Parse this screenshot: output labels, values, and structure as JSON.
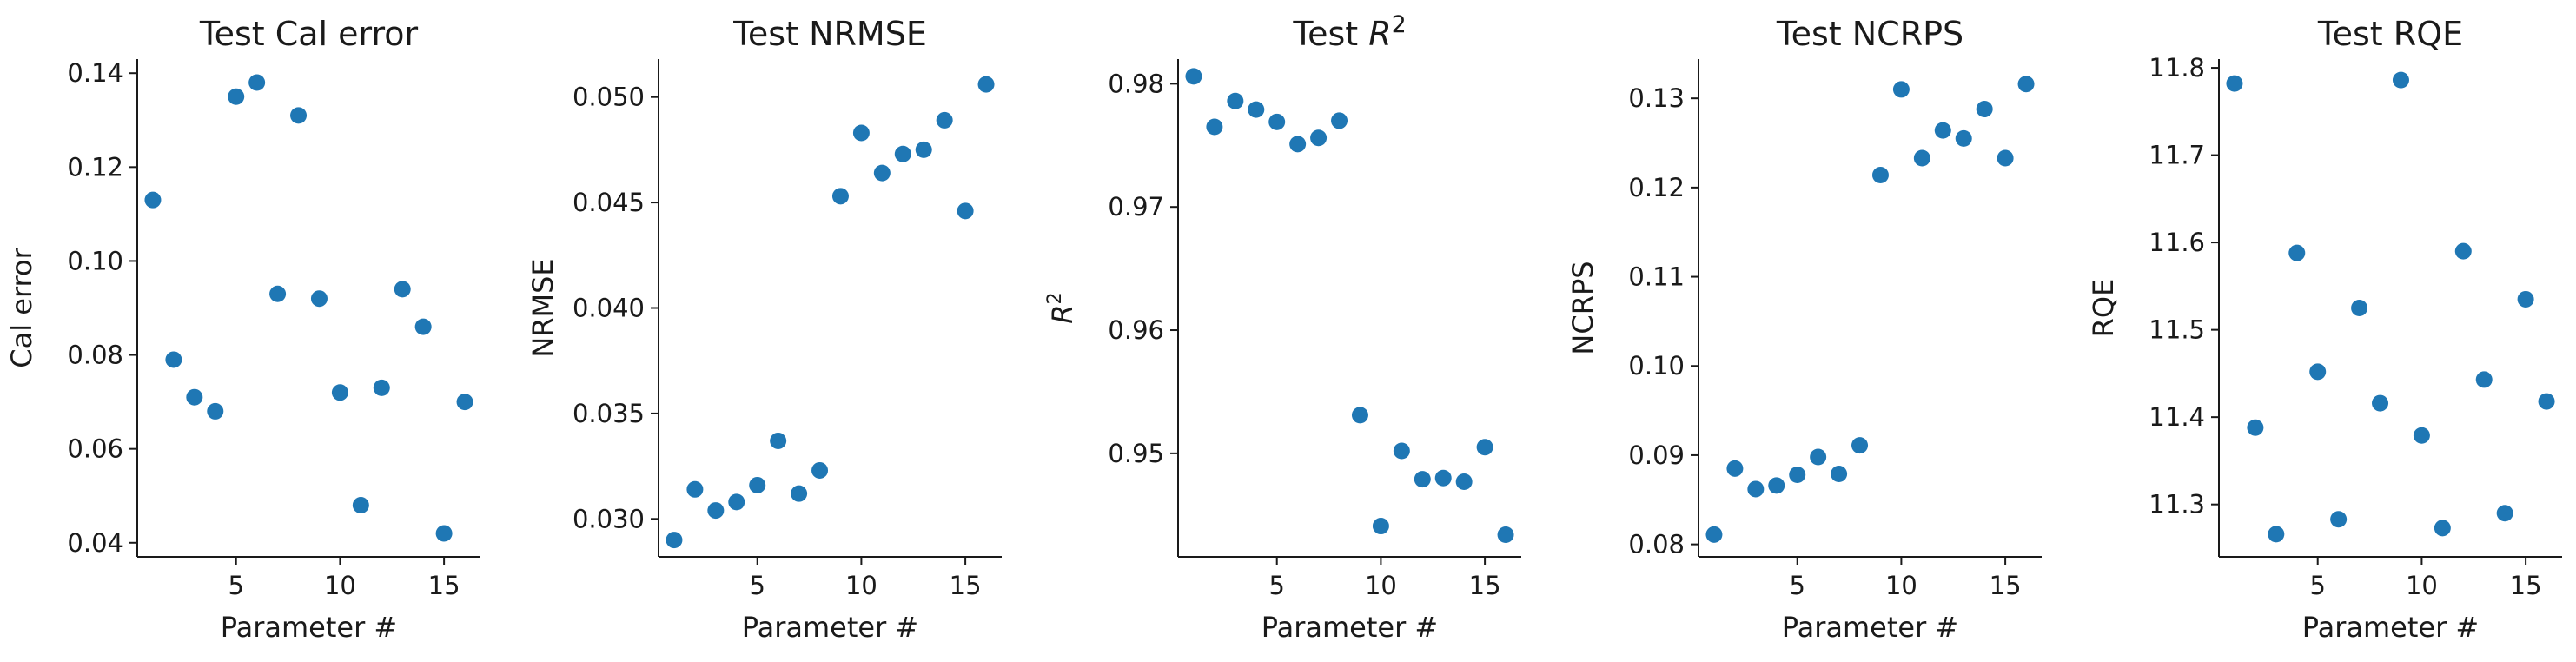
{
  "figure": {
    "marker_color": "#1f77b4",
    "axis_color": "#1a1a1a",
    "background": "#ffffff"
  },
  "chart_data": [
    {
      "type": "scatter",
      "title": "Test Cal error",
      "xlabel": "Parameter #",
      "ylabel": "Cal error",
      "xlim": [
        0.25,
        16.75
      ],
      "ylim": [
        0.037,
        0.143
      ],
      "xticks": [
        5,
        10,
        15
      ],
      "yticks": [
        0.04,
        0.06,
        0.08,
        0.1,
        0.12,
        0.14
      ],
      "ytick_labels": [
        "0.04",
        "0.06",
        "0.08",
        "0.10",
        "0.12",
        "0.14"
      ],
      "grid": false,
      "x": [
        1,
        2,
        3,
        4,
        5,
        6,
        7,
        8,
        9,
        10,
        11,
        12,
        13,
        14,
        15,
        16
      ],
      "y": [
        0.113,
        0.079,
        0.071,
        0.068,
        0.135,
        0.138,
        0.093,
        0.131,
        0.092,
        0.072,
        0.048,
        0.073,
        0.094,
        0.086,
        0.042,
        0.07
      ]
    },
    {
      "type": "scatter",
      "title": "Test NRMSE",
      "xlabel": "Parameter #",
      "ylabel": "NRMSE",
      "xlim": [
        0.25,
        16.75
      ],
      "ylim": [
        0.0282,
        0.0518
      ],
      "xticks": [
        5,
        10,
        15
      ],
      "yticks": [
        0.03,
        0.035,
        0.04,
        0.045,
        0.05
      ],
      "ytick_labels": [
        "0.030",
        "0.035",
        "0.040",
        "0.045",
        "0.050"
      ],
      "grid": false,
      "x": [
        1,
        2,
        3,
        4,
        5,
        6,
        7,
        8,
        9,
        10,
        11,
        12,
        13,
        14,
        15,
        16
      ],
      "y": [
        0.029,
        0.0314,
        0.0304,
        0.0308,
        0.0316,
        0.0337,
        0.0312,
        0.0323,
        0.0453,
        0.0483,
        0.0464,
        0.0473,
        0.0475,
        0.0489,
        0.0446,
        0.0506
      ]
    },
    {
      "type": "scatter",
      "title": "Test R",
      "title_superscript": "2",
      "xlabel": "Parameter #",
      "ylabel": "R",
      "ylabel_superscript": "2",
      "xlim": [
        0.25,
        16.75
      ],
      "ylim": [
        0.9416,
        0.982
      ],
      "xticks": [
        5,
        10,
        15
      ],
      "yticks": [
        0.95,
        0.96,
        0.97,
        0.98
      ],
      "ytick_labels": [
        "0.95",
        "0.96",
        "0.97",
        "0.98"
      ],
      "grid": false,
      "x": [
        1,
        2,
        3,
        4,
        5,
        6,
        7,
        8,
        9,
        10,
        11,
        12,
        13,
        14,
        15,
        16
      ],
      "y": [
        0.9806,
        0.9765,
        0.9786,
        0.9779,
        0.9769,
        0.9751,
        0.9756,
        0.977,
        0.9531,
        0.9441,
        0.9502,
        0.9479,
        0.948,
        0.9477,
        0.9505,
        0.9434
      ]
    },
    {
      "type": "scatter",
      "title": "Test NCRPS",
      "xlabel": "Parameter #",
      "ylabel": "NCRPS",
      "xlim": [
        0.25,
        16.75
      ],
      "ylim": [
        0.0786,
        0.1344
      ],
      "xticks": [
        5,
        10,
        15
      ],
      "yticks": [
        0.08,
        0.09,
        0.1,
        0.11,
        0.12,
        0.13
      ],
      "ytick_labels": [
        "0.08",
        "0.09",
        "0.10",
        "0.11",
        "0.12",
        "0.13"
      ],
      "grid": false,
      "x": [
        1,
        2,
        3,
        4,
        5,
        6,
        7,
        8,
        9,
        10,
        11,
        12,
        13,
        14,
        15,
        16
      ],
      "y": [
        0.0811,
        0.0885,
        0.0862,
        0.0866,
        0.0878,
        0.0898,
        0.0879,
        0.0911,
        0.1214,
        0.131,
        0.1233,
        0.1264,
        0.1255,
        0.1288,
        0.1233,
        0.1316
      ]
    },
    {
      "type": "scatter",
      "title": "Test RQE",
      "xlabel": "Parameter #",
      "ylabel": "RQE",
      "xlim": [
        0.25,
        16.75
      ],
      "ylim": [
        11.24,
        11.81
      ],
      "xticks": [
        5,
        10,
        15
      ],
      "yticks": [
        11.3,
        11.4,
        11.5,
        11.6,
        11.7,
        11.8
      ],
      "ytick_labels": [
        "11.3",
        "11.4",
        "11.5",
        "11.6",
        "11.7",
        "11.8"
      ],
      "grid": false,
      "x": [
        1,
        2,
        3,
        4,
        5,
        6,
        7,
        8,
        9,
        10,
        11,
        12,
        13,
        14,
        15,
        16
      ],
      "y": [
        11.782,
        11.388,
        11.266,
        11.588,
        11.452,
        11.283,
        11.525,
        11.416,
        11.786,
        11.379,
        11.273,
        11.59,
        11.443,
        11.29,
        11.535,
        11.418
      ]
    }
  ]
}
